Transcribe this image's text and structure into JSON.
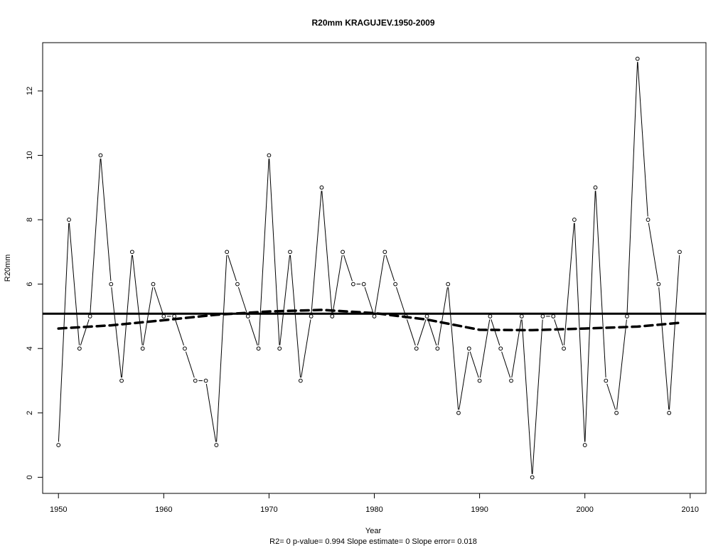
{
  "chart_data": {
    "type": "line",
    "title": "R20mm   KRAGUJEV.1950-2009",
    "xlabel": "Year",
    "ylabel": "R20mm",
    "subtitle": "R2= 0  p-value= 0.994  Slope estimate= 0  Slope error= 0.018",
    "xlim": [
      1948.5,
      2011.5
    ],
    "ylim": [
      -0.5,
      13.5
    ],
    "x_ticks": [
      1950,
      1960,
      1970,
      1980,
      1990,
      2000,
      2010
    ],
    "y_ticks": [
      0,
      2,
      4,
      6,
      8,
      10,
      12
    ],
    "grid": false,
    "series": [
      {
        "style": "line-with-points",
        "color": "#000000",
        "x": [
          1950,
          1951,
          1952,
          1953,
          1954,
          1955,
          1956,
          1957,
          1958,
          1959,
          1960,
          1961,
          1962,
          1963,
          1964,
          1965,
          1966,
          1967,
          1968,
          1969,
          1970,
          1971,
          1972,
          1973,
          1974,
          1975,
          1976,
          1977,
          1978,
          1979,
          1980,
          1981,
          1982,
          1983,
          1984,
          1985,
          1986,
          1987,
          1988,
          1989,
          1990,
          1991,
          1992,
          1993,
          1994,
          1995,
          1996,
          1997,
          1998,
          1999,
          2000,
          2001,
          2002,
          2003,
          2004,
          2005,
          2006,
          2007,
          2008,
          2009
        ],
        "values": [
          1,
          8,
          4,
          5,
          10,
          6,
          3,
          7,
          4,
          6,
          5,
          5,
          4,
          3,
          3,
          1,
          7,
          6,
          5,
          4,
          10,
          4,
          7,
          3,
          5,
          9,
          5,
          7,
          6,
          6,
          5,
          7,
          6,
          5,
          4,
          5,
          4,
          6,
          2,
          4,
          3,
          5,
          4,
          3,
          5,
          0,
          5,
          5,
          4,
          8,
          1,
          9,
          3,
          2,
          5,
          13,
          8,
          6,
          2,
          7
        ]
      },
      {
        "style": "dashed-smooth",
        "color": "#000000",
        "x": [
          1950,
          1955,
          1960,
          1965,
          1970,
          1975,
          1980,
          1985,
          1990,
          1995,
          2000,
          2005,
          2009
        ],
        "values": [
          4.62,
          4.72,
          4.88,
          5.05,
          5.15,
          5.2,
          5.1,
          4.9,
          4.58,
          4.57,
          4.62,
          4.68,
          4.8
        ]
      },
      {
        "style": "horizontal-line",
        "color": "#000000",
        "values": [
          5.08
        ]
      }
    ]
  }
}
